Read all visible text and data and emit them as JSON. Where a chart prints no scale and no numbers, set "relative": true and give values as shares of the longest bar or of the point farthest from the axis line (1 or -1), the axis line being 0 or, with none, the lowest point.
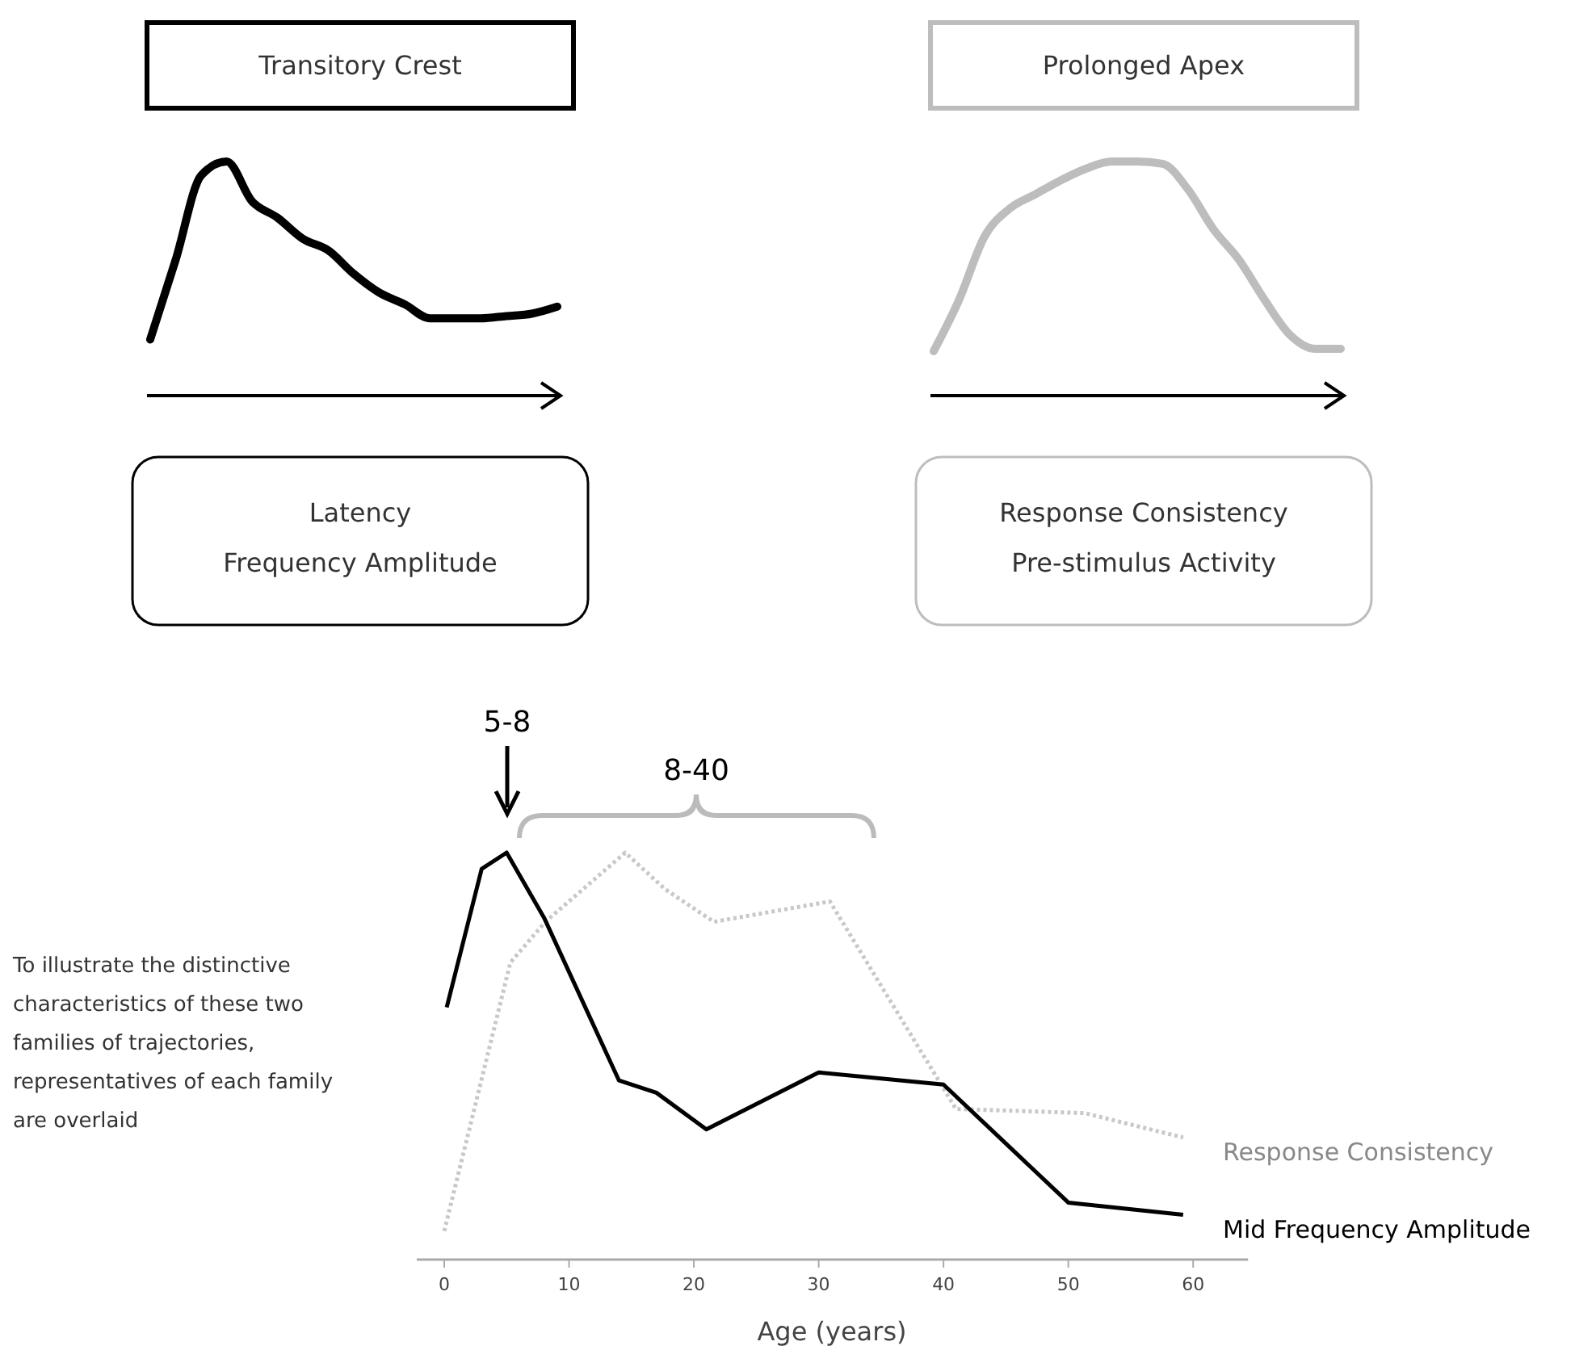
{
  "chart_data": [
    {
      "type": "line",
      "relative": true,
      "title": "Transitory Crest",
      "annotations": [
        "Latency",
        "Frequency Amplitude"
      ],
      "categories": [
        null,
        null,
        null,
        null,
        null,
        null,
        null,
        null,
        null,
        null,
        null,
        null,
        null,
        null,
        null,
        null,
        null
      ],
      "series": [
        {
          "color": "#000000",
          "values": [
            0.24,
            0.58,
            0.94,
            1,
            0.83,
            0.76,
            0.67,
            0.62,
            0.52,
            0.44,
            0.39,
            0.33,
            0.33,
            0.33,
            0.34,
            0.35,
            0.38
          ]
        }
      ]
    },
    {
      "type": "line",
      "relative": true,
      "title": "Prolonged Apex",
      "annotations": [
        "Response Consistency",
        "Pre-stimulus Activity"
      ],
      "categories": [
        null,
        null,
        null,
        null,
        null,
        null,
        null,
        null,
        null,
        null,
        null,
        null,
        null,
        null,
        null,
        null,
        null
      ],
      "series": [
        {
          "color": "#bdbdbd",
          "values": [
            0.19,
            0.41,
            0.68,
            0.8,
            0.86,
            0.92,
            0.97,
            1,
            1,
            0.99,
            0.88,
            0.71,
            0.58,
            0.41,
            0.26,
            0.2,
            0.2
          ]
        }
      ]
    },
    {
      "type": "line",
      "relative": true,
      "xlabel": "Age (years)",
      "xlim": [
        -2.2,
        64.4
      ],
      "xticks": [
        0,
        10,
        20,
        30,
        40,
        50,
        60
      ],
      "annotations": [
        "5-8",
        "8-40",
        "To illustrate the distinctive characteristics of these two families of trajectories, representatives of each family are overlaid"
      ],
      "series": [
        {
          "name": "Response Consistency",
          "color": "#c8c8c8",
          "line_style": "dotted",
          "x": [
            0,
            5.3,
            8.1,
            14.5,
            17.7,
            21.6,
            30.9,
            41,
            51.3,
            59.2
          ],
          "values": [
            0.07,
            0.73,
            0.83,
            1,
            0.91,
            0.83,
            0.88,
            0.37,
            0.36,
            0.3
          ]
        },
        {
          "name": "Mid Frequency Amplitude",
          "color": "#000000",
          "line_style": "solid",
          "x": [
            0.2,
            3,
            5,
            8,
            14,
            17,
            21,
            30,
            40,
            50,
            59.2
          ],
          "values": [
            0.62,
            0.96,
            1,
            0.84,
            0.44,
            0.41,
            0.32,
            0.46,
            0.43,
            0.14,
            0.11
          ]
        }
      ]
    }
  ]
}
